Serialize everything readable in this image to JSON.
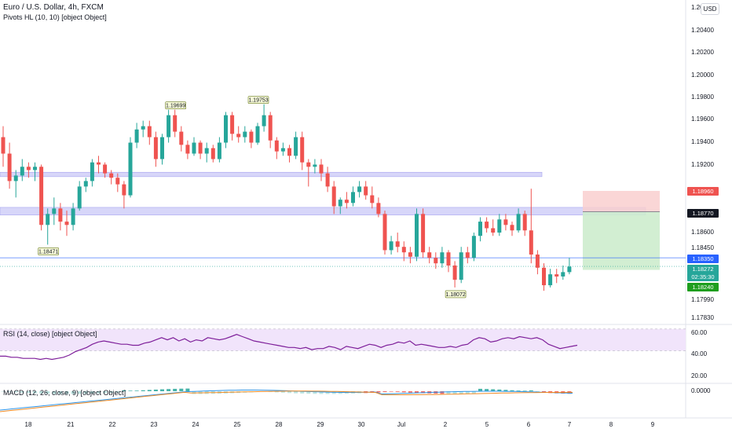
{
  "header": {
    "symbol_line": "Euro / U.S. Dollar, 4h, FXCM",
    "indicator_line": "Pivots HL (10, 10) [object Object]",
    "currency_badge": "USD",
    "top_price_cut": "1.20"
  },
  "colors": {
    "bull": "#26a69a",
    "bear": "#ef5350",
    "zone_fill": "#c9c8f7",
    "rsi_line": "#7e1f9a",
    "rsi_band": "#f1e4fb",
    "macd_line": "#2f95e8",
    "signal_line": "#f08a24",
    "price_line": "#2962ff",
    "stop_zone": "#f9cfcf",
    "target_zone": "#cdeccd"
  },
  "price_axis": {
    "ticks": [
      "1.20400",
      "1.20200",
      "1.20000",
      "1.19800",
      "1.19600",
      "1.19400",
      "1.19200",
      "1.18600",
      "1.18450",
      "1.17990",
      "1.17830"
    ]
  },
  "price_tags": [
    {
      "label": "1.18960",
      "color": "#ef5350",
      "text_color": "#ffffff"
    },
    {
      "label": "1.18770",
      "color": "#131722",
      "text_color": "#ffffff"
    },
    {
      "label": "1.18350",
      "color": "#2962ff",
      "text_color": "#ffffff"
    },
    {
      "label": "1.18272",
      "color": "#26a69a",
      "text_color": "#ffffff"
    },
    {
      "label": "02:35:30",
      "color": "#26a69a",
      "text_color": "#ffffff"
    },
    {
      "label": "1.18240",
      "color": "#1e9e1e",
      "text_color": "#ffffff"
    }
  ],
  "pivot_labels": [
    "1.19699",
    "1.19753",
    "1.18471",
    "1.18072"
  ],
  "rsi_panel": {
    "label": "RSI (14, close) [object Object]",
    "ticks": [
      "60.00",
      "40.00",
      "20.00"
    ],
    "values": [
      35,
      35,
      34,
      34,
      33,
      33,
      33,
      32,
      33,
      32,
      33,
      34,
      36,
      39,
      41,
      43,
      46,
      48,
      49,
      48,
      47,
      46,
      46,
      45,
      45,
      47,
      48,
      50,
      52,
      50,
      52,
      49,
      51,
      48,
      50,
      49,
      52,
      51,
      50,
      51,
      53,
      55,
      53,
      51,
      49,
      48,
      47,
      46,
      45,
      44,
      43,
      43,
      42,
      43,
      41,
      42,
      42,
      44,
      43,
      41,
      44,
      43,
      42,
      44,
      46,
      45,
      43,
      45,
      46,
      48,
      47,
      49,
      45,
      46,
      45,
      44,
      43,
      43,
      44,
      43,
      45,
      46,
      50,
      52,
      51,
      48,
      49,
      51,
      52,
      51,
      53,
      52,
      51,
      52,
      50,
      46,
      44,
      42,
      43,
      44,
      45
    ]
  },
  "macd_panel": {
    "label": "MACD (12, 26, close, 9) [object Object]",
    "ticks": [
      "0.0000"
    ]
  },
  "time_axis": {
    "labels": [
      "18",
      "21",
      "22",
      "23",
      "24",
      "25",
      "28",
      "29",
      "30",
      "Jul",
      "2",
      "5",
      "6",
      "7",
      "8",
      "9"
    ]
  },
  "chart_data": [
    {
      "type": "candlestick",
      "title": "Euro / U.S. Dollar, 4h, FXCM",
      "ylim": [
        1.1775,
        1.207
      ],
      "ohlc": [
        [
          1.1945,
          1.1955,
          1.1918,
          1.193
        ],
        [
          1.193,
          1.194,
          1.1898,
          1.1905
        ],
        [
          1.1905,
          1.1915,
          1.189,
          1.191
        ],
        [
          1.191,
          1.1925,
          1.1905,
          1.1918
        ],
        [
          1.1918,
          1.1922,
          1.1908,
          1.1915
        ],
        [
          1.1915,
          1.1922,
          1.1905,
          1.1918
        ],
        [
          1.1918,
          1.192,
          1.186,
          1.1865
        ],
        [
          1.1865,
          1.188,
          1.1847,
          1.1875
        ],
        [
          1.1875,
          1.189,
          1.1865,
          1.188
        ],
        [
          1.188,
          1.1885,
          1.186,
          1.1868
        ],
        [
          1.1868,
          1.1878,
          1.1855,
          1.1865
        ],
        [
          1.1865,
          1.1885,
          1.186,
          1.188
        ],
        [
          1.188,
          1.1905,
          1.1878,
          1.19
        ],
        [
          1.19,
          1.1908,
          1.1895,
          1.1905
        ],
        [
          1.1905,
          1.1925,
          1.19,
          1.1922
        ],
        [
          1.1922,
          1.1928,
          1.1912,
          1.192
        ],
        [
          1.192,
          1.1922,
          1.1908,
          1.1912
        ],
        [
          1.1912,
          1.1915,
          1.1902,
          1.1908
        ],
        [
          1.1908,
          1.1912,
          1.1895,
          1.1902
        ],
        [
          1.1902,
          1.1905,
          1.188,
          1.1892
        ],
        [
          1.1892,
          1.1945,
          1.189,
          1.194
        ],
        [
          1.194,
          1.1958,
          1.1935,
          1.1952
        ],
        [
          1.1952,
          1.196,
          1.1945,
          1.1955
        ],
        [
          1.1955,
          1.196,
          1.1938,
          1.1945
        ],
        [
          1.1945,
          1.195,
          1.1918,
          1.1925
        ],
        [
          1.1925,
          1.1948,
          1.192,
          1.1945
        ],
        [
          1.1945,
          1.197,
          1.194,
          1.1965
        ],
        [
          1.1965,
          1.197,
          1.1945,
          1.195
        ],
        [
          1.195,
          1.1955,
          1.1932,
          1.1938
        ],
        [
          1.1938,
          1.1942,
          1.1925,
          1.193
        ],
        [
          1.193,
          1.1945,
          1.1928,
          1.194
        ],
        [
          1.194,
          1.1942,
          1.1925,
          1.193
        ],
        [
          1.193,
          1.194,
          1.1922,
          1.1935
        ],
        [
          1.1935,
          1.1938,
          1.1922,
          1.1925
        ],
        [
          1.1925,
          1.1945,
          1.1922,
          1.194
        ],
        [
          1.194,
          1.1968,
          1.1935,
          1.1965
        ],
        [
          1.1965,
          1.1968,
          1.1942,
          1.1948
        ],
        [
          1.1948,
          1.1955,
          1.194,
          1.1945
        ],
        [
          1.1945,
          1.1955,
          1.194,
          1.195
        ],
        [
          1.195,
          1.1952,
          1.1935,
          1.194
        ],
        [
          1.194,
          1.1958,
          1.1938,
          1.1955
        ],
        [
          1.1955,
          1.1975,
          1.195,
          1.1965
        ],
        [
          1.1965,
          1.1968,
          1.1935,
          1.1942
        ],
        [
          1.1942,
          1.1945,
          1.1925,
          1.1932
        ],
        [
          1.1932,
          1.194,
          1.1928,
          1.1935
        ],
        [
          1.1935,
          1.1938,
          1.1922,
          1.1928
        ],
        [
          1.1928,
          1.195,
          1.1925,
          1.1945
        ],
        [
          1.1945,
          1.195,
          1.1915,
          1.1922
        ],
        [
          1.1922,
          1.1925,
          1.19,
          1.1918
        ],
        [
          1.1918,
          1.1925,
          1.1912,
          1.192
        ],
        [
          1.192,
          1.1925,
          1.1905,
          1.1912
        ],
        [
          1.1912,
          1.1918,
          1.1895,
          1.19
        ],
        [
          1.19,
          1.1905,
          1.1875,
          1.1882
        ],
        [
          1.1882,
          1.189,
          1.1875,
          1.1888
        ],
        [
          1.1888,
          1.1895,
          1.188,
          1.1885
        ],
        [
          1.1885,
          1.19,
          1.1882,
          1.1895
        ],
        [
          1.1895,
          1.1905,
          1.189,
          1.19
        ],
        [
          1.19,
          1.1905,
          1.1888,
          1.1892
        ],
        [
          1.1892,
          1.19,
          1.188,
          1.1885
        ],
        [
          1.1885,
          1.189,
          1.1872,
          1.1875
        ],
        [
          1.1875,
          1.1878,
          1.1838,
          1.1842
        ],
        [
          1.1842,
          1.1855,
          1.1838,
          1.185
        ],
        [
          1.185,
          1.1858,
          1.184,
          1.1845
        ],
        [
          1.1845,
          1.185,
          1.1832,
          1.184
        ],
        [
          1.184,
          1.1845,
          1.183,
          1.1836
        ],
        [
          1.1836,
          1.188,
          1.1832,
          1.1875
        ],
        [
          1.1875,
          1.188,
          1.1835,
          1.184
        ],
        [
          1.184,
          1.1845,
          1.183,
          1.1835
        ],
        [
          1.1835,
          1.184,
          1.1825,
          1.183
        ],
        [
          1.183,
          1.1845,
          1.1826,
          1.184
        ],
        [
          1.184,
          1.1842,
          1.1822,
          1.1828
        ],
        [
          1.1828,
          1.1832,
          1.1808,
          1.1815
        ],
        [
          1.1815,
          1.1845,
          1.1812,
          1.184
        ],
        [
          1.184,
          1.1845,
          1.183,
          1.1835
        ],
        [
          1.1835,
          1.1858,
          1.1832,
          1.1855
        ],
        [
          1.1855,
          1.1872,
          1.185,
          1.1868
        ],
        [
          1.1868,
          1.1872,
          1.1858,
          1.1862
        ],
        [
          1.1862,
          1.187,
          1.1855,
          1.1858
        ],
        [
          1.1858,
          1.1875,
          1.1855,
          1.187
        ],
        [
          1.187,
          1.1875,
          1.186,
          1.1865
        ],
        [
          1.1865,
          1.1868,
          1.1855,
          1.186
        ],
        [
          1.186,
          1.188,
          1.1858,
          1.1875
        ],
        [
          1.1875,
          1.1878,
          1.1855,
          1.186
        ],
        [
          1.186,
          1.1898,
          1.183,
          1.1838
        ],
        [
          1.1838,
          1.1842,
          1.182,
          1.1826
        ],
        [
          1.1826,
          1.183,
          1.1805,
          1.181
        ],
        [
          1.181,
          1.1825,
          1.1808,
          1.182
        ],
        [
          1.182,
          1.1825,
          1.1812,
          1.1818
        ],
        [
          1.1818,
          1.1828,
          1.1815,
          1.1822
        ],
        [
          1.1822,
          1.1835,
          1.182,
          1.1827
        ]
      ],
      "horizontal_lines": [
        1.1835
      ],
      "zones": [
        [
          1.1909,
          1.1913
        ],
        [
          1.1874,
          1.1881
        ]
      ],
      "position": {
        "entry": 1.1877,
        "stop": 1.1896,
        "target": 1.1824
      }
    },
    {
      "type": "line",
      "title": "RSI (14, close)",
      "ylim": [
        10,
        62
      ],
      "band": [
        40,
        60
      ]
    },
    {
      "type": "line",
      "title": "MACD (12, 26, close, 9)"
    }
  ]
}
